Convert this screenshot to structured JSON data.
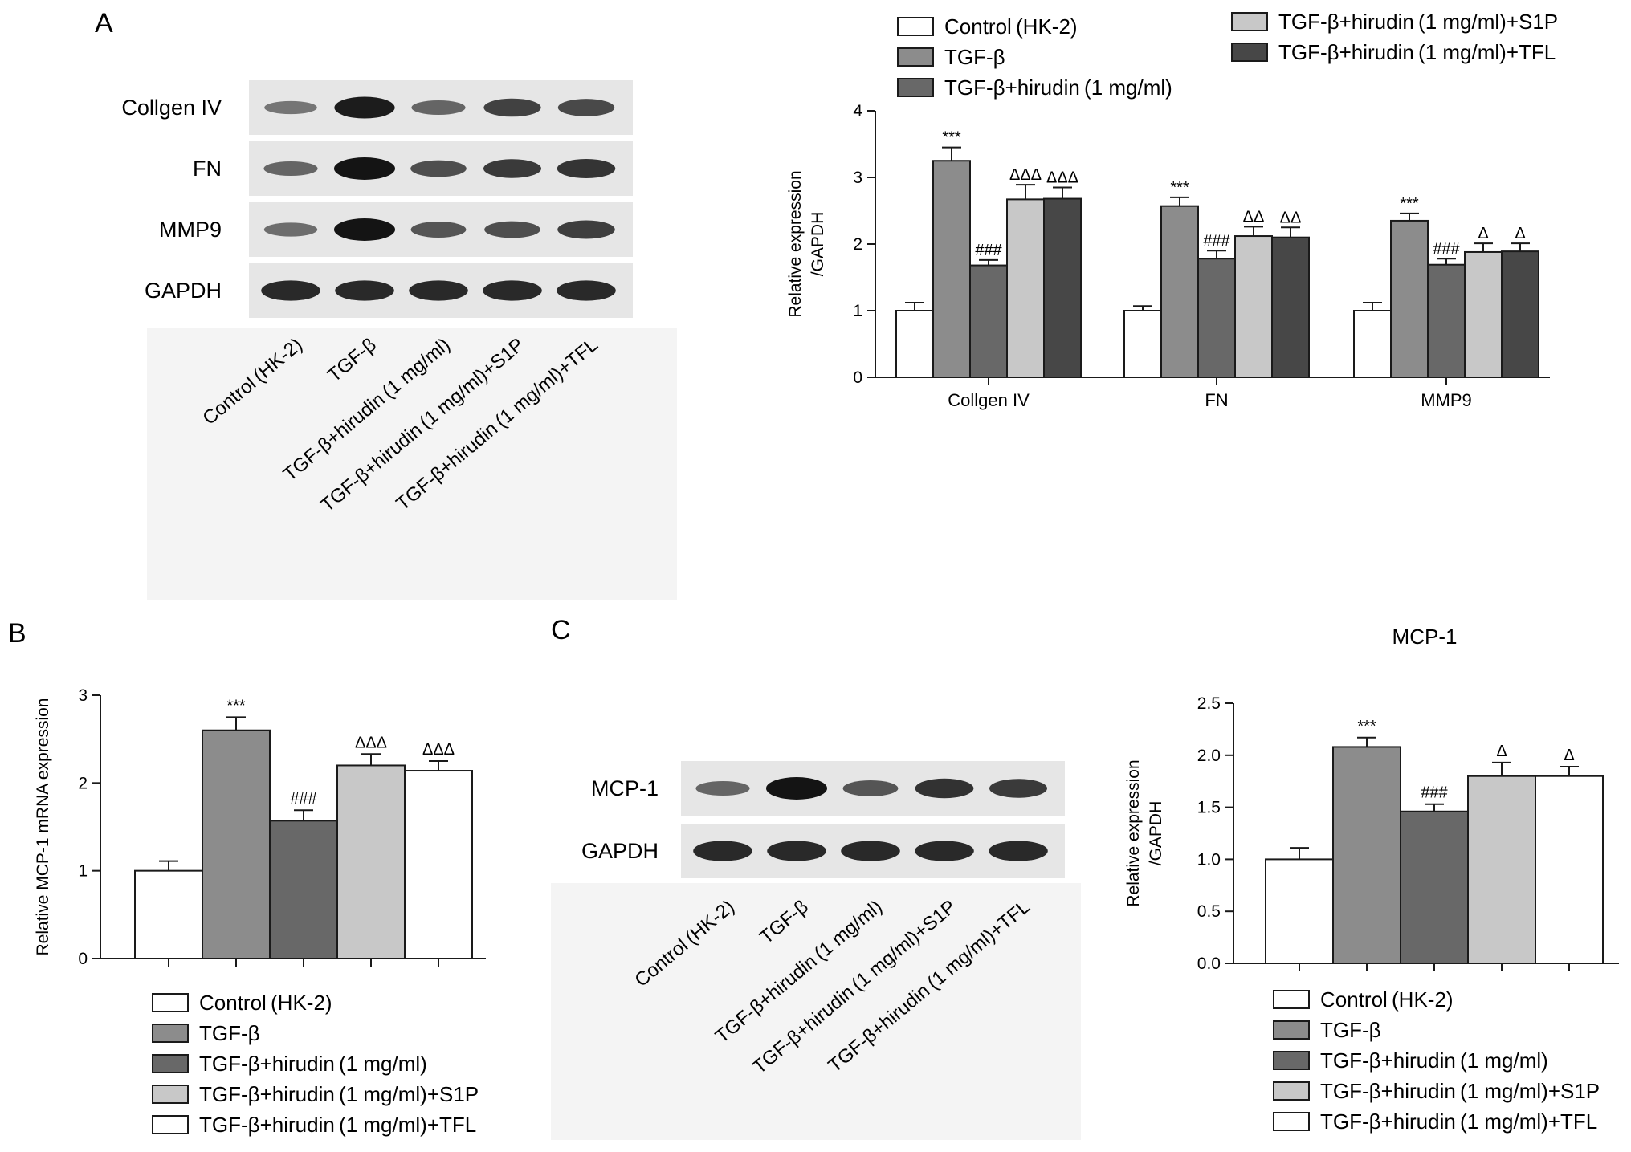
{
  "panels": {
    "A": "A",
    "B": "B",
    "C": "C"
  },
  "colors": {
    "control": "#ffffff",
    "tgf": "#8c8c8c",
    "hirudin": "#686868",
    "s1p": "#c8c8c8",
    "tfl_dark": "#474747",
    "tfl_white": "#ffffff",
    "outline": "#1a1a1a",
    "blot_bg": "#e6e6e6",
    "band": "#141414"
  },
  "groups": [
    "Control (HK-2)",
    "TGF-β",
    "TGF-β+hirudin (1 mg/ml)",
    "TGF-β+hirudin (1 mg/ml)+S1P",
    "TGF-β+hirudin (1 mg/ml)+TFL"
  ],
  "blotA": {
    "rows": [
      "Collgen IV",
      "FN",
      "MMP9",
      "GAPDH"
    ],
    "intensities": [
      [
        0.35,
        0.95,
        0.45,
        0.7,
        0.65
      ],
      [
        0.45,
        1.0,
        0.6,
        0.75,
        0.78
      ],
      [
        0.4,
        1.0,
        0.55,
        0.6,
        0.72
      ],
      [
        0.85,
        0.85,
        0.85,
        0.85,
        0.85
      ]
    ]
  },
  "blotC": {
    "rows": [
      "MCP-1",
      "GAPDH"
    ],
    "intensities": [
      [
        0.45,
        1.0,
        0.55,
        0.8,
        0.75
      ],
      [
        0.85,
        0.85,
        0.85,
        0.85,
        0.85
      ]
    ]
  },
  "chart_data": [
    {
      "id": "A",
      "type": "bar",
      "ylabel_lines": [
        "Relative expression",
        "/GAPDH"
      ],
      "ylim": [
        0,
        4
      ],
      "yticks": [
        "0",
        "1",
        "2",
        "3",
        "4"
      ],
      "categories": [
        "Collgen IV",
        "FN",
        "MMP9"
      ],
      "series": [
        {
          "name": "Control (HK-2)",
          "values": [
            1.0,
            1.0,
            1.0
          ],
          "errors": [
            0.12,
            0.07,
            0.12
          ],
          "labels": [
            "",
            "",
            ""
          ]
        },
        {
          "name": "TGF-β",
          "values": [
            3.25,
            2.57,
            2.35
          ],
          "errors": [
            0.2,
            0.13,
            0.11
          ],
          "labels": [
            "***",
            "***",
            "***"
          ]
        },
        {
          "name": "TGF-β+hirudin (1 mg/ml)",
          "values": [
            1.68,
            1.78,
            1.69
          ],
          "errors": [
            0.08,
            0.12,
            0.09
          ],
          "labels": [
            "###",
            "###",
            "###"
          ]
        },
        {
          "name": "TGF-β+hirudin (1 mg/ml)+S1P",
          "values": [
            2.67,
            2.12,
            1.88
          ],
          "errors": [
            0.22,
            0.14,
            0.13
          ],
          "labels": [
            "ΔΔΔ",
            "ΔΔ",
            "Δ"
          ]
        },
        {
          "name": "TGF-β+hirudin (1 mg/ml)+TFL",
          "values": [
            2.68,
            2.1,
            1.89
          ],
          "errors": [
            0.17,
            0.15,
            0.12
          ],
          "labels": [
            "ΔΔΔ",
            "ΔΔ",
            "Δ"
          ]
        }
      ]
    },
    {
      "id": "B",
      "type": "bar",
      "ylabel": "Relative MCP-1 mRNA expression",
      "ylim": [
        0,
        3
      ],
      "yticks": [
        "0",
        "1",
        "2",
        "3"
      ],
      "categories": [
        "Control (HK-2)",
        "TGF-β",
        "TGF-β+hirudin (1 mg/ml)",
        "TGF-β+hirudin (1 mg/ml)+S1P",
        "TGF-β+hirudin (1 mg/ml)+TFL"
      ],
      "values": [
        1.0,
        2.6,
        1.57,
        2.2,
        2.14
      ],
      "errors": [
        0.11,
        0.15,
        0.12,
        0.13,
        0.11
      ],
      "labels": [
        "",
        "***",
        "###",
        "ΔΔΔ",
        "ΔΔΔ"
      ]
    },
    {
      "id": "C",
      "type": "bar",
      "title": "MCP-1",
      "ylabel_lines": [
        "Relative expression",
        "/GAPDH"
      ],
      "ylim": [
        0,
        2.5
      ],
      "yticks": [
        "0.0",
        "0.5",
        "1.0",
        "1.5",
        "2.0",
        "2.5"
      ],
      "categories": [
        "Control (HK-2)",
        "TGF-β",
        "TGF-β+hirudin (1 mg/ml)",
        "TGF-β+hirudin (1 mg/ml)+S1P",
        "TGF-β+hirudin (1 mg/ml)+TFL"
      ],
      "values": [
        1.0,
        2.08,
        1.46,
        1.8,
        1.8
      ],
      "errors": [
        0.11,
        0.09,
        0.07,
        0.13,
        0.09
      ],
      "labels": [
        "",
        "***",
        "###",
        "Δ",
        "Δ"
      ]
    }
  ]
}
